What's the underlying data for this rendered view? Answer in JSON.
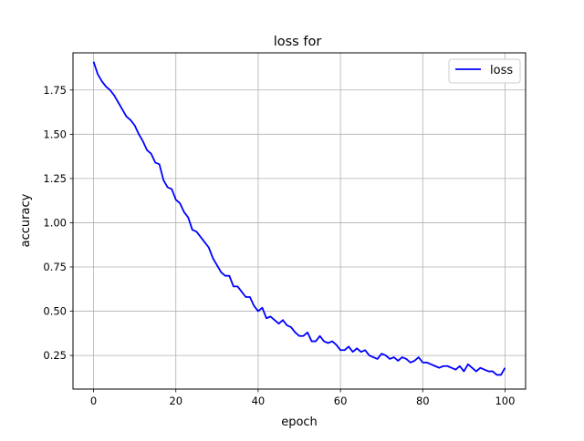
{
  "chart_data": {
    "type": "line",
    "title": "loss for",
    "xlabel": "epoch",
    "ylabel": "accuracy",
    "xlim": [
      -5,
      105
    ],
    "ylim": [
      0.06,
      1.96
    ],
    "xticks": [
      0,
      20,
      40,
      60,
      80,
      100
    ],
    "xtick_labels": [
      "0",
      "20",
      "40",
      "60",
      "80",
      "100"
    ],
    "yticks": [
      0.25,
      0.5,
      0.75,
      1.0,
      1.25,
      1.5,
      1.75
    ],
    "ytick_labels": [
      "0.25",
      "0.50",
      "0.75",
      "1.00",
      "1.25",
      "1.50",
      "1.75"
    ],
    "grid": true,
    "legend_position": "top-right",
    "series": [
      {
        "name": "loss",
        "color": "#0000ff",
        "x": [
          0,
          1,
          2,
          3,
          4,
          5,
          6,
          7,
          8,
          9,
          10,
          11,
          12,
          13,
          14,
          15,
          16,
          17,
          18,
          19,
          20,
          21,
          22,
          23,
          24,
          25,
          26,
          27,
          28,
          29,
          30,
          31,
          32,
          33,
          34,
          35,
          36,
          37,
          38,
          39,
          40,
          41,
          42,
          43,
          44,
          45,
          46,
          47,
          48,
          49,
          50,
          51,
          52,
          53,
          54,
          55,
          56,
          57,
          58,
          59,
          60,
          61,
          62,
          63,
          64,
          65,
          66,
          67,
          68,
          69,
          70,
          71,
          72,
          73,
          74,
          75,
          76,
          77,
          78,
          79,
          80,
          81,
          82,
          83,
          84,
          85,
          86,
          87,
          88,
          89,
          90,
          91,
          92,
          93,
          94,
          95,
          96,
          97,
          98,
          99,
          100
        ],
        "values": [
          1.91,
          1.84,
          1.8,
          1.77,
          1.75,
          1.72,
          1.68,
          1.64,
          1.6,
          1.58,
          1.55,
          1.5,
          1.46,
          1.41,
          1.39,
          1.34,
          1.33,
          1.24,
          1.2,
          1.19,
          1.13,
          1.11,
          1.06,
          1.03,
          0.96,
          0.95,
          0.92,
          0.89,
          0.86,
          0.8,
          0.76,
          0.72,
          0.7,
          0.7,
          0.64,
          0.64,
          0.61,
          0.58,
          0.58,
          0.53,
          0.5,
          0.52,
          0.46,
          0.47,
          0.45,
          0.43,
          0.45,
          0.42,
          0.41,
          0.38,
          0.36,
          0.36,
          0.38,
          0.33,
          0.33,
          0.36,
          0.33,
          0.32,
          0.33,
          0.31,
          0.28,
          0.28,
          0.3,
          0.27,
          0.29,
          0.27,
          0.28,
          0.25,
          0.24,
          0.23,
          0.26,
          0.25,
          0.23,
          0.24,
          0.22,
          0.24,
          0.23,
          0.21,
          0.22,
          0.24,
          0.21,
          0.21,
          0.2,
          0.19,
          0.18,
          0.19,
          0.19,
          0.18,
          0.17,
          0.19,
          0.16,
          0.2,
          0.18,
          0.16,
          0.18,
          0.17,
          0.16,
          0.16,
          0.14,
          0.14,
          0.18
        ]
      }
    ]
  }
}
